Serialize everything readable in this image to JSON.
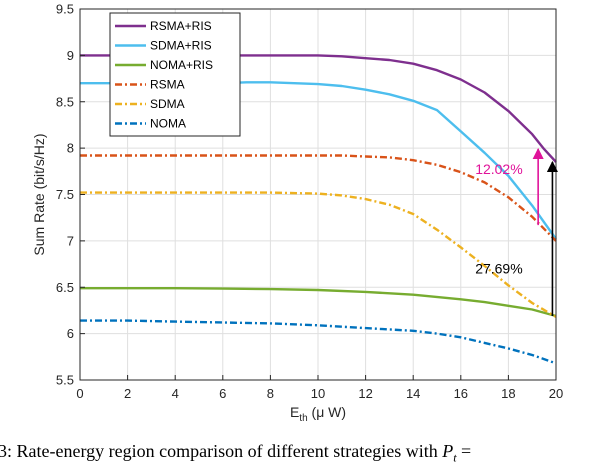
{
  "caption": {
    "text": "3: Rate-energy region comparison of different strategies with ",
    "math": "P",
    "math_sub": "t",
    "math_tail": " ="
  },
  "chart_data": {
    "type": "line",
    "xlabel": "E",
    "xlabel_sub": "th",
    "xlabel_unit": " (μ W)",
    "ylabel": "Sum Rate (bit/s/Hz)",
    "xlim": [
      0,
      20
    ],
    "ylim": [
      5.5,
      9.5
    ],
    "xticks": [
      "0",
      "2",
      "4",
      "6",
      "8",
      "10",
      "12",
      "14",
      "16",
      "18",
      "20"
    ],
    "yticks": [
      "5.5",
      "6",
      "6.5",
      "7",
      "7.5",
      "8",
      "8.5",
      "9",
      "9.5"
    ],
    "grid": true,
    "legend_position": "top-left",
    "series": [
      {
        "name": "RSMA+RIS",
        "color": "#7E2F8E",
        "dash": "solid",
        "x": [
          0,
          2,
          4,
          6,
          8,
          10,
          11,
          12,
          13,
          14,
          15,
          16,
          17,
          18,
          19,
          19.5,
          20
        ],
        "y": [
          9.0,
          9.0,
          9.0,
          9.0,
          9.0,
          9.0,
          8.99,
          8.97,
          8.95,
          8.91,
          8.84,
          8.74,
          8.6,
          8.4,
          8.15,
          7.99,
          7.85
        ]
      },
      {
        "name": "SDMA+RIS",
        "color": "#4DBEEE",
        "dash": "solid",
        "x": [
          0,
          2,
          3,
          4,
          5,
          6,
          7,
          8,
          9,
          10,
          11,
          12,
          13,
          14,
          15,
          16,
          17,
          18,
          19,
          20
        ],
        "y": [
          8.7,
          8.7,
          8.71,
          8.7,
          8.71,
          8.7,
          8.71,
          8.71,
          8.7,
          8.69,
          8.67,
          8.63,
          8.58,
          8.51,
          8.41,
          8.18,
          7.95,
          7.7,
          7.38,
          7.02
        ]
      },
      {
        "name": "NOMA+RIS",
        "color": "#77AC30",
        "dash": "solid",
        "x": [
          0,
          2,
          4,
          6,
          8,
          10,
          12,
          14,
          16,
          17,
          18,
          19,
          20
        ],
        "y": [
          6.49,
          6.49,
          6.49,
          6.485,
          6.48,
          6.47,
          6.45,
          6.42,
          6.37,
          6.34,
          6.3,
          6.26,
          6.19
        ]
      },
      {
        "name": "RSMA",
        "color": "#D95319",
        "dash": "dashdot",
        "x": [
          0,
          2,
          4,
          6,
          8,
          10,
          11,
          12,
          13,
          14,
          15,
          16,
          17,
          18,
          19,
          20
        ],
        "y": [
          7.92,
          7.92,
          7.92,
          7.92,
          7.92,
          7.92,
          7.92,
          7.91,
          7.9,
          7.87,
          7.82,
          7.74,
          7.63,
          7.47,
          7.26,
          7.0
        ]
      },
      {
        "name": "SDMA",
        "color": "#EDB120",
        "dash": "dashdot",
        "x": [
          0,
          2,
          4,
          6,
          8,
          10,
          11,
          12,
          13,
          14,
          15,
          16,
          17,
          18,
          19,
          20
        ],
        "y": [
          7.52,
          7.52,
          7.52,
          7.52,
          7.52,
          7.51,
          7.49,
          7.45,
          7.39,
          7.29,
          7.12,
          6.93,
          6.73,
          6.52,
          6.33,
          6.18
        ]
      },
      {
        "name": "NOMA",
        "color": "#0072BD",
        "dash": "dashdot",
        "x": [
          0,
          2,
          4,
          6,
          8,
          10,
          12,
          14,
          15,
          16,
          17,
          18,
          19,
          20
        ],
        "y": [
          6.14,
          6.14,
          6.13,
          6.12,
          6.11,
          6.09,
          6.06,
          6.03,
          6.0,
          5.96,
          5.9,
          5.84,
          5.77,
          5.68
        ]
      }
    ],
    "annotations": [
      {
        "text": "12.02%",
        "color": "#E0139A",
        "x": 18.6,
        "y": 7.72,
        "arrow_from": [
          19.25,
          7.17
        ],
        "arrow_to": [
          19.25,
          7.99
        ]
      },
      {
        "text": "27.69%",
        "color": "#000000",
        "x": 18.6,
        "y": 6.65,
        "arrow_from": [
          19.85,
          6.19
        ],
        "arrow_to": [
          19.85,
          7.85
        ]
      }
    ]
  }
}
